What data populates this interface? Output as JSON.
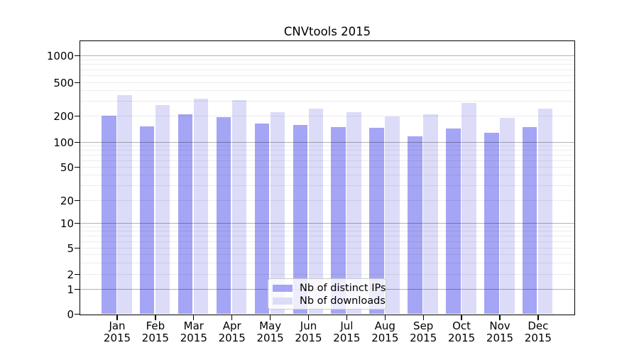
{
  "chart_data": {
    "type": "bar",
    "title": "CNVtools 2015",
    "categories": [
      "Jan",
      "Feb",
      "Mar",
      "Apr",
      "May",
      "Jun",
      "Jul",
      "Aug",
      "Sep",
      "Oct",
      "Nov",
      "Dec"
    ],
    "category_year": "2015",
    "series": [
      {
        "name": "Nb of distinct IPs",
        "color": "#a5a5f5",
        "values": [
          200,
          152,
          210,
          192,
          164,
          157,
          149,
          146,
          116,
          144,
          127,
          148
        ]
      },
      {
        "name": "Nb of downloads",
        "color": "#dcdcf9",
        "values": [
          350,
          270,
          320,
          308,
          222,
          244,
          219,
          195,
          207,
          286,
          188,
          244
        ]
      }
    ],
    "xlabel": "",
    "ylabel": "",
    "yticks": [
      0,
      1,
      2,
      5,
      10,
      20,
      50,
      100,
      200,
      500,
      1000
    ],
    "yscale": "log above 1, linear segment from 0 to 1 (symlog-like)",
    "ylim": [
      0,
      1500
    ],
    "grid": "horizontal gridlines: dark at powers of 10, faint log minors, drawn over bars",
    "legend": {
      "position": "lower center",
      "labels": [
        "Nb of distinct IPs",
        "Nb of downloads"
      ]
    }
  }
}
